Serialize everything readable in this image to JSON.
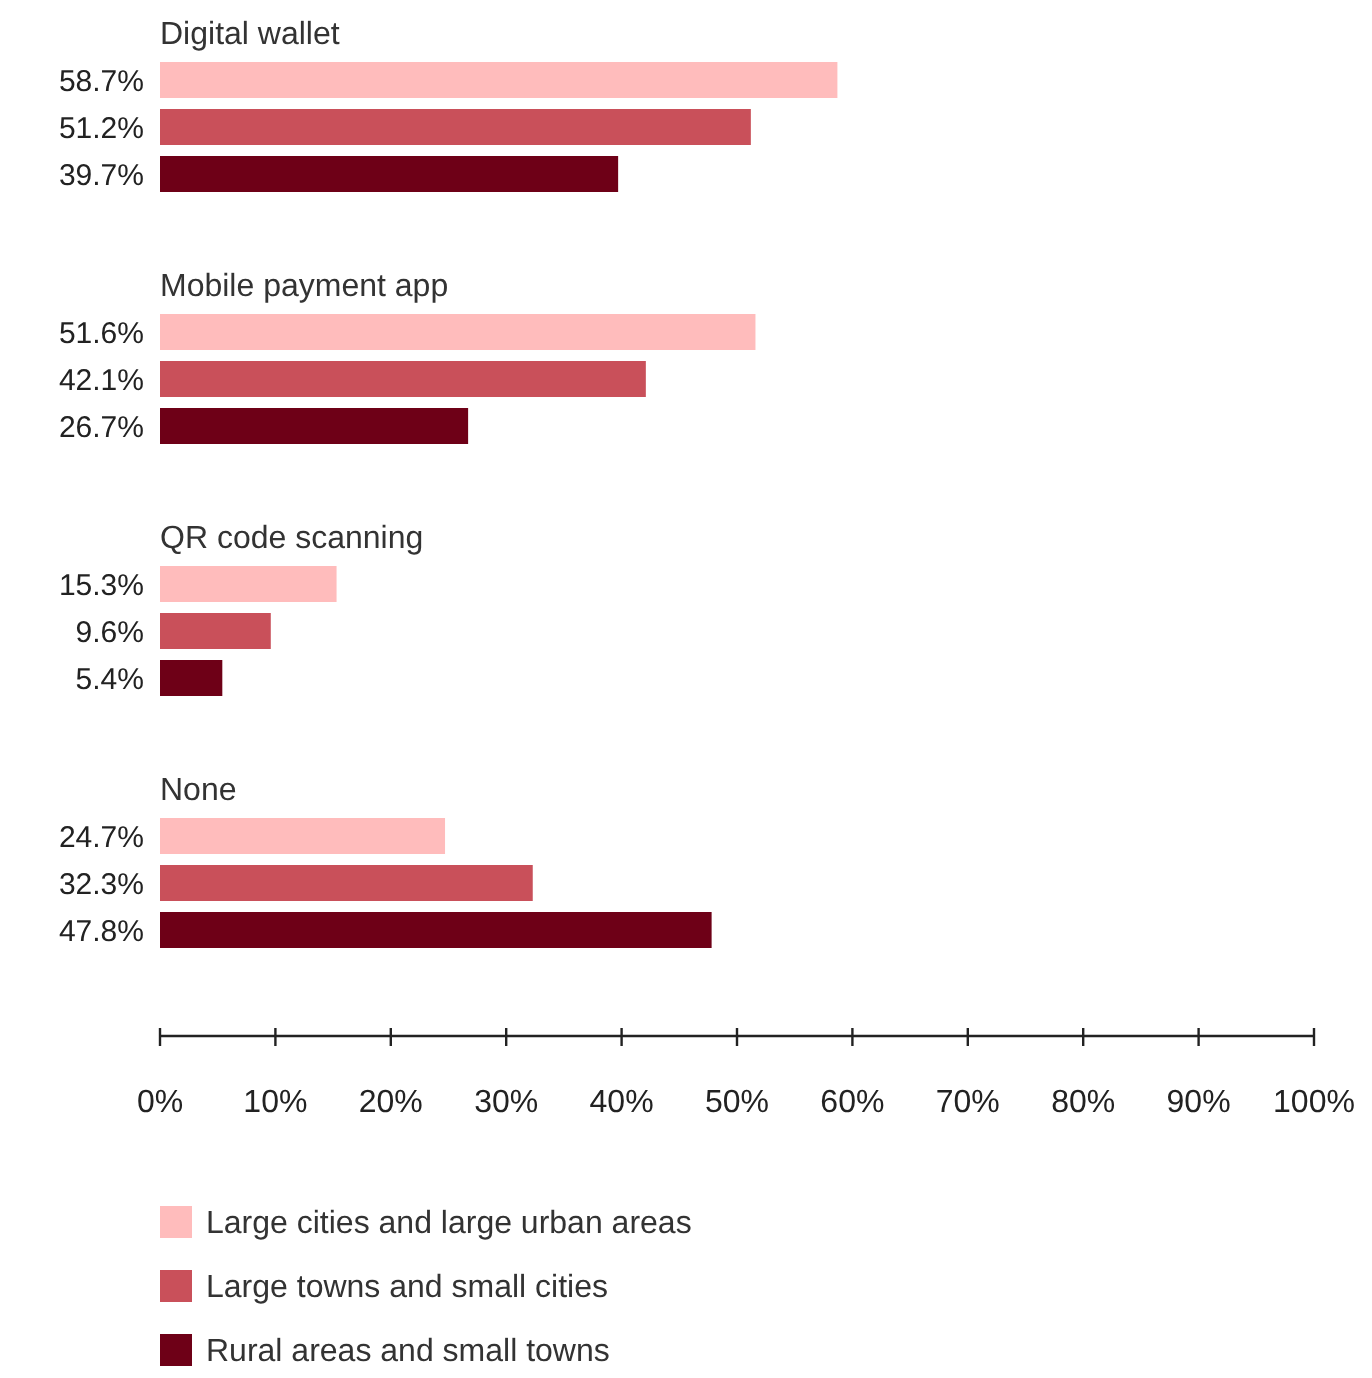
{
  "chart_data": {
    "type": "bar",
    "orientation": "horizontal",
    "categories": [
      "Digital wallet",
      "Mobile payment app",
      "QR code scanning",
      "None"
    ],
    "series": [
      {
        "name": "Large cities and large urban areas",
        "color": "#ffbcbc",
        "values": [
          58.7,
          51.6,
          15.3,
          24.7
        ],
        "value_labels": [
          "58.7%",
          "51.6%",
          "15.3%",
          "24.7%"
        ]
      },
      {
        "name": "Large towns and small cities",
        "color": "#c9505a",
        "values": [
          51.2,
          42.1,
          9.6,
          32.3
        ],
        "value_labels": [
          "51.2%",
          "42.1%",
          "9.6%",
          "32.3%"
        ]
      },
      {
        "name": "Rural areas and small towns",
        "color": "#6e0017",
        "values": [
          39.7,
          26.7,
          5.4,
          47.8
        ],
        "value_labels": [
          "39.7%",
          "26.7%",
          "5.4%",
          "47.8%"
        ]
      }
    ],
    "xlim": [
      0,
      100
    ],
    "xticks": [
      {
        "value": 0,
        "label": "0%"
      },
      {
        "value": 10,
        "label": "10%"
      },
      {
        "value": 20,
        "label": "20%"
      },
      {
        "value": 30,
        "label": "30%"
      },
      {
        "value": 40,
        "label": "40%"
      },
      {
        "value": 50,
        "label": "50%"
      },
      {
        "value": 60,
        "label": "60%"
      },
      {
        "value": 70,
        "label": "70%"
      },
      {
        "value": 80,
        "label": "80%"
      },
      {
        "value": 90,
        "label": "90%"
      },
      {
        "value": 100,
        "label": "100%"
      }
    ],
    "grid": false,
    "legend": "bottom"
  }
}
